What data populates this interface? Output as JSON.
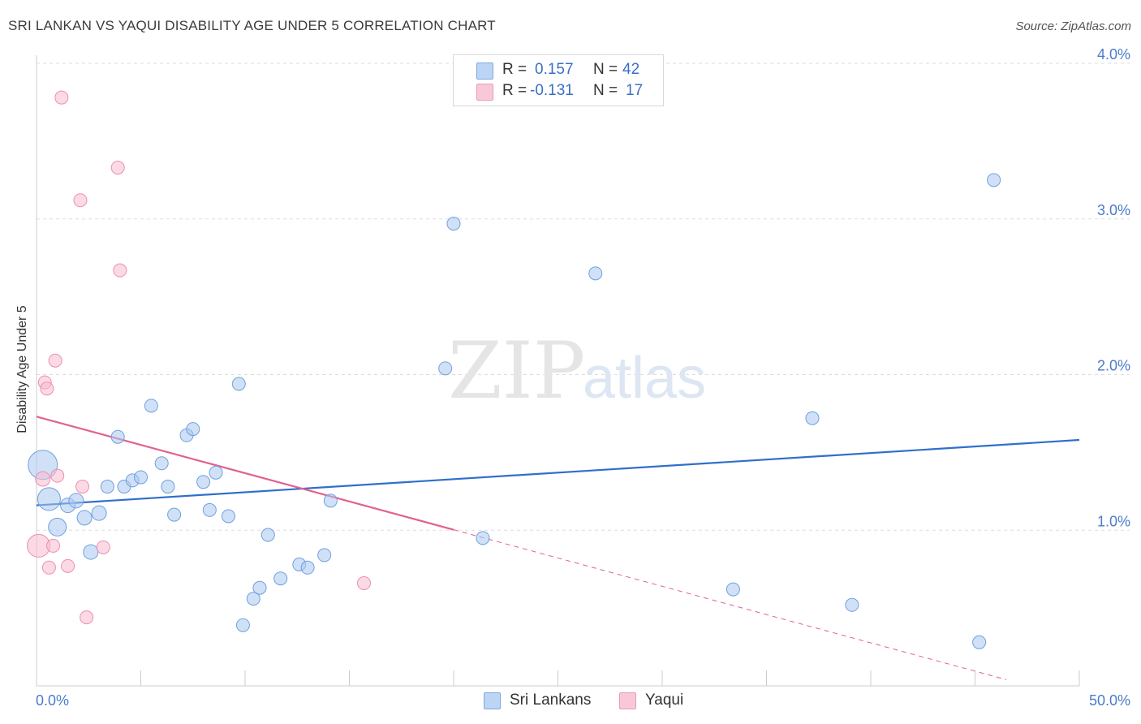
{
  "header": {
    "title": "SRI LANKAN VS YAQUI DISABILITY AGE UNDER 5 CORRELATION CHART",
    "source": "Source: ZipAtlas.com"
  },
  "watermark": {
    "zip": "ZIP",
    "atlas": "atlas"
  },
  "legend": {
    "r_label": "R =",
    "n_label": "N =",
    "rows": [
      {
        "name": "Sri Lankans",
        "r": "0.157",
        "n": "42",
        "color": "#a9c8f0"
      },
      {
        "name": "Yaqui",
        "r": "-0.131",
        "n": "17",
        "color": "#f7bcd0"
      }
    ]
  },
  "chart_data": {
    "type": "scatter",
    "title": "SRI LANKAN VS YAQUI DISABILITY AGE UNDER 5 CORRELATION CHART",
    "xlabel": "",
    "ylabel": "Disability Age Under 5",
    "xlim": [
      0,
      50
    ],
    "ylim": [
      0,
      4.2
    ],
    "x_tick_labels": {
      "left": "0.0%",
      "right": "50.0%"
    },
    "y_ticks": [
      {
        "value": 1.0,
        "label": "1.0%"
      },
      {
        "value": 2.0,
        "label": "2.0%"
      },
      {
        "value": 3.0,
        "label": "3.0%"
      },
      {
        "value": 4.0,
        "label": "4.0%"
      }
    ],
    "series": [
      {
        "name": "Sri Lankans",
        "color": "#a9c8f0",
        "edge": "#6fa0dd",
        "points": [
          {
            "x": 0.3,
            "y": 1.42,
            "s": 18
          },
          {
            "x": 0.6,
            "y": 1.2,
            "s": 14
          },
          {
            "x": 1.0,
            "y": 1.02,
            "s": 11
          },
          {
            "x": 1.5,
            "y": 1.16,
            "s": 9
          },
          {
            "x": 1.9,
            "y": 1.19,
            "s": 9
          },
          {
            "x": 2.3,
            "y": 1.08,
            "s": 9
          },
          {
            "x": 2.6,
            "y": 0.86,
            "s": 9
          },
          {
            "x": 3.0,
            "y": 1.11,
            "s": 9
          },
          {
            "x": 3.4,
            "y": 1.28,
            "s": 8
          },
          {
            "x": 3.9,
            "y": 1.6,
            "s": 8
          },
          {
            "x": 4.2,
            "y": 1.28,
            "s": 8
          },
          {
            "x": 4.6,
            "y": 1.32,
            "s": 8
          },
          {
            "x": 5.0,
            "y": 1.34,
            "s": 8
          },
          {
            "x": 5.5,
            "y": 1.8,
            "s": 8
          },
          {
            "x": 6.0,
            "y": 1.43,
            "s": 8
          },
          {
            "x": 6.3,
            "y": 1.28,
            "s": 8
          },
          {
            "x": 6.6,
            "y": 1.1,
            "s": 8
          },
          {
            "x": 7.2,
            "y": 1.61,
            "s": 8
          },
          {
            "x": 7.5,
            "y": 1.65,
            "s": 8
          },
          {
            "x": 8.0,
            "y": 1.31,
            "s": 8
          },
          {
            "x": 8.3,
            "y": 1.13,
            "s": 8
          },
          {
            "x": 8.6,
            "y": 1.37,
            "s": 8
          },
          {
            "x": 9.2,
            "y": 1.09,
            "s": 8
          },
          {
            "x": 9.7,
            "y": 1.94,
            "s": 8
          },
          {
            "x": 9.9,
            "y": 0.39,
            "s": 8
          },
          {
            "x": 10.4,
            "y": 0.56,
            "s": 8
          },
          {
            "x": 10.7,
            "y": 0.63,
            "s": 8
          },
          {
            "x": 11.1,
            "y": 0.97,
            "s": 8
          },
          {
            "x": 11.7,
            "y": 0.69,
            "s": 8
          },
          {
            "x": 12.6,
            "y": 0.78,
            "s": 8
          },
          {
            "x": 13.0,
            "y": 0.76,
            "s": 8
          },
          {
            "x": 13.8,
            "y": 0.84,
            "s": 8
          },
          {
            "x": 14.1,
            "y": 1.19,
            "s": 8
          },
          {
            "x": 19.6,
            "y": 2.04,
            "s": 8
          },
          {
            "x": 20.0,
            "y": 2.97,
            "s": 8
          },
          {
            "x": 21.4,
            "y": 0.95,
            "s": 8
          },
          {
            "x": 26.8,
            "y": 2.65,
            "s": 8
          },
          {
            "x": 33.4,
            "y": 0.62,
            "s": 8
          },
          {
            "x": 37.2,
            "y": 1.72,
            "s": 8
          },
          {
            "x": 39.1,
            "y": 0.52,
            "s": 8
          },
          {
            "x": 45.2,
            "y": 0.28,
            "s": 8
          },
          {
            "x": 45.9,
            "y": 3.25,
            "s": 8
          }
        ],
        "trend": {
          "x0": 0,
          "y0": 1.16,
          "x1": 50,
          "y1": 1.58,
          "solid_to": 50
        }
      },
      {
        "name": "Yaqui",
        "color": "#f7bcd0",
        "edge": "#ec8fae",
        "points": [
          {
            "x": 0.1,
            "y": 0.9,
            "s": 14
          },
          {
            "x": 0.3,
            "y": 1.33,
            "s": 9
          },
          {
            "x": 0.4,
            "y": 1.95,
            "s": 8
          },
          {
            "x": 0.5,
            "y": 1.91,
            "s": 8
          },
          {
            "x": 0.6,
            "y": 0.76,
            "s": 8
          },
          {
            "x": 0.8,
            "y": 0.9,
            "s": 8
          },
          {
            "x": 0.9,
            "y": 2.09,
            "s": 8
          },
          {
            "x": 1.0,
            "y": 1.35,
            "s": 8
          },
          {
            "x": 1.2,
            "y": 3.78,
            "s": 8
          },
          {
            "x": 1.5,
            "y": 0.77,
            "s": 8
          },
          {
            "x": 2.1,
            "y": 3.12,
            "s": 8
          },
          {
            "x": 2.2,
            "y": 1.28,
            "s": 8
          },
          {
            "x": 2.4,
            "y": 0.44,
            "s": 8
          },
          {
            "x": 3.2,
            "y": 0.89,
            "s": 8
          },
          {
            "x": 3.9,
            "y": 3.33,
            "s": 8
          },
          {
            "x": 4.0,
            "y": 2.67,
            "s": 8
          },
          {
            "x": 15.7,
            "y": 0.66,
            "s": 8
          }
        ],
        "trend": {
          "x0": 0,
          "y0": 1.73,
          "x1": 46.5,
          "y1": 0.04,
          "solid_to": 20
        }
      }
    ]
  },
  "bottom_legend": [
    {
      "name": "Sri Lankans",
      "color": "#a9c8f0"
    },
    {
      "name": "Yaqui",
      "color": "#f7bcd0"
    }
  ]
}
